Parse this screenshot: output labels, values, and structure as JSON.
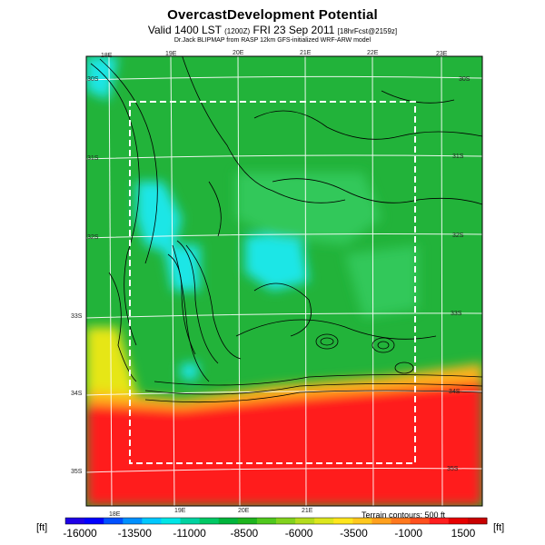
{
  "title": "OvercastDevelopment Potential",
  "subtitle": {
    "main": "Valid 1400 LST",
    "utc": "(1200Z)",
    "date": "FRI 23 Sep 2011",
    "forecast": "[18hrFcst@2159z]"
  },
  "credit": "Dr.Jack BLIPMAP from RASP 12km GFS-initialized WRF-ARW model",
  "terrain_note": "Terrain contours: 500 ft",
  "unit_left": "[ft]",
  "unit_right": "[ft]",
  "lon_labels_top": [
    "18E",
    "19E",
    "20E",
    "21E",
    "22E",
    "23E"
  ],
  "lon_labels_bottom": [
    "18E",
    "19E",
    "20E",
    "21E"
  ],
  "lat_labels": [
    "30S",
    "31S",
    "32S",
    "33S",
    "34S",
    "35S"
  ],
  "colorbar": {
    "labels": [
      "-16000",
      "-13500",
      "-11000",
      "-8500",
      "-6000",
      "-3500",
      "-1000",
      "1500"
    ],
    "colors": [
      "#1e00e6",
      "#0000ff",
      "#0050ff",
      "#0090ff",
      "#00c8ff",
      "#00e6e6",
      "#00d2a0",
      "#00c864",
      "#00b43c",
      "#1eb41e",
      "#50c81e",
      "#82d21e",
      "#b4dc1e",
      "#dce61e",
      "#ffe61e",
      "#ffc81e",
      "#ffa01e",
      "#ff781e",
      "#ff501e",
      "#ff1e1e",
      "#e60000",
      "#c80000"
    ]
  },
  "region_colors": {
    "ocean_south": "#ff1a1a",
    "land_green": "#22b33a",
    "light_green": "#33c85a",
    "cyan": "#1ee6e6",
    "yellow": "#e6e619",
    "orange": "#ffb41e"
  }
}
